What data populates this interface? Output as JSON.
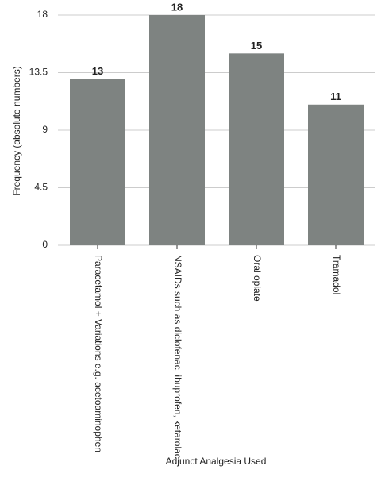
{
  "chart_data": {
    "type": "bar",
    "categories": [
      "Paracetamol + Variations e.g. acetoaminophen",
      "NSAIDs such as diclofenac, ibuprofen, ketarolac",
      "Oral opiate",
      "Tramadol"
    ],
    "values": [
      13,
      18,
      15,
      11
    ],
    "color": "#7e8381",
    "ylim": [
      0,
      18
    ],
    "yticks": [
      0,
      4.5,
      9,
      13.5,
      18
    ],
    "grid": true,
    "ylabel": "Frequency (absolute numbers)",
    "xlabel": "Adjunct Analgesia Used"
  }
}
